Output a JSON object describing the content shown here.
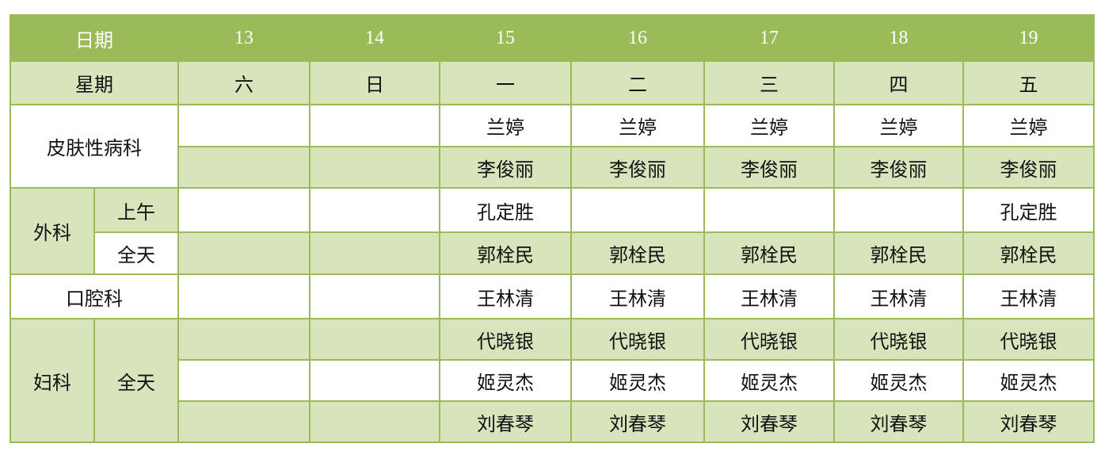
{
  "colors": {
    "header": "#9bbb59",
    "light_row": "#d7e4bc",
    "border": "#9bbb59"
  },
  "header": {
    "label": "日期",
    "dates": [
      "13",
      "14",
      "15",
      "16",
      "17",
      "18",
      "19"
    ]
  },
  "weekday": {
    "label": "星期",
    "days": [
      "六",
      "日",
      "一",
      "二",
      "三",
      "四",
      "五"
    ]
  },
  "rows": {
    "derm": {
      "label": "皮肤性病科",
      "r1": [
        "",
        "",
        "兰婷",
        "兰婷",
        "兰婷",
        "兰婷",
        "兰婷"
      ],
      "r2": [
        "",
        "",
        "李俊丽",
        "李俊丽",
        "李俊丽",
        "李俊丽",
        "李俊丽"
      ]
    },
    "surgery": {
      "label": "外科",
      "am_label": "上午",
      "am": [
        "",
        "",
        "孔定胜",
        "",
        "",
        "",
        "孔定胜"
      ],
      "full_label": "全天",
      "full": [
        "",
        "",
        "郭栓民",
        "郭栓民",
        "郭栓民",
        "郭栓民",
        "郭栓民"
      ]
    },
    "dental": {
      "label": "口腔科",
      "r1": [
        "",
        "",
        "王林清",
        "王林清",
        "王林清",
        "王林清",
        "王林清"
      ]
    },
    "gyn": {
      "label": "妇科",
      "sub_label": "全天",
      "r1": [
        "",
        "",
        "代晓银",
        "代晓银",
        "代晓银",
        "代晓银",
        "代晓银"
      ],
      "r2": [
        "",
        "",
        "姬灵杰",
        "姬灵杰",
        "姬灵杰",
        "姬灵杰",
        "姬灵杰"
      ],
      "r3": [
        "",
        "",
        "刘春琴",
        "刘春琴",
        "刘春琴",
        "刘春琴",
        "刘春琴"
      ]
    }
  }
}
